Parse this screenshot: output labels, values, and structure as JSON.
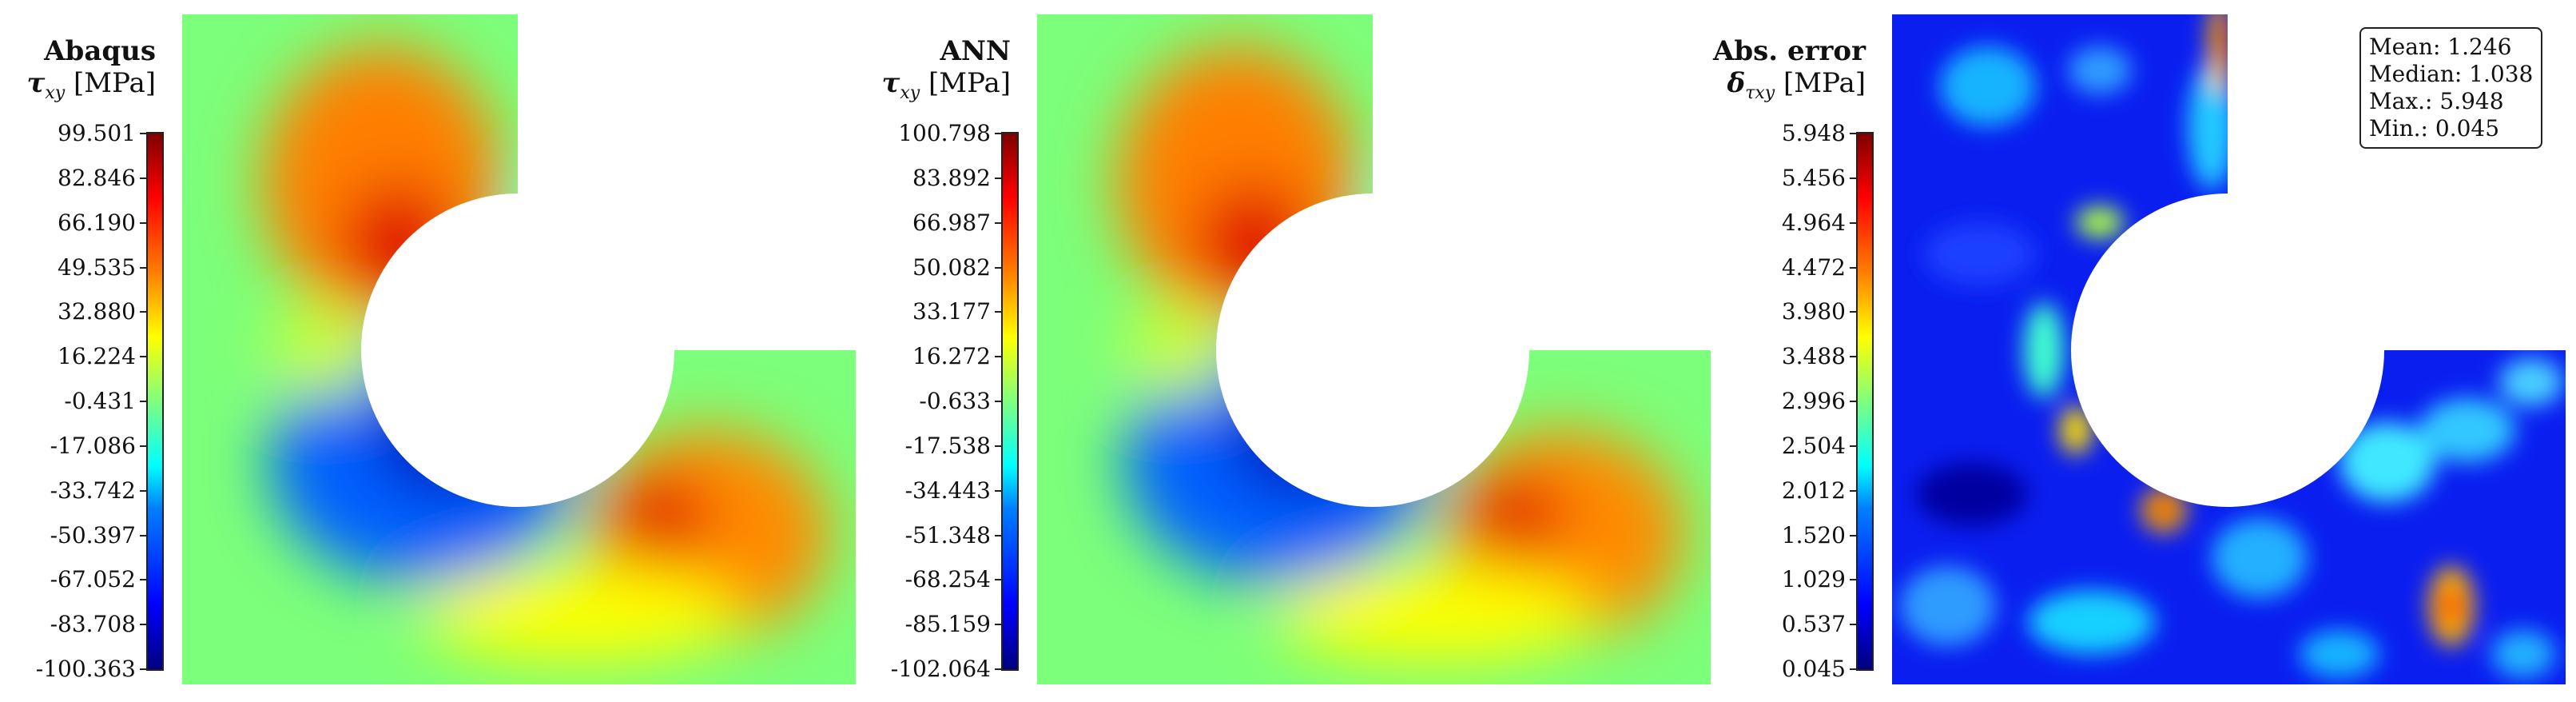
{
  "panels": [
    {
      "title": "Abaqus",
      "symbol": "τ",
      "subscript": "xy",
      "unit": "[MPa]",
      "ticks": [
        "99.501",
        "82.846",
        "66.190",
        "49.535",
        "32.880",
        "16.224",
        "-0.431",
        "-17.086",
        "-33.742",
        "-50.397",
        "-67.052",
        "-83.708",
        "-100.363"
      ]
    },
    {
      "title": "ANN",
      "symbol": "τ",
      "subscript": "xy",
      "unit": "[MPa]",
      "ticks": [
        "100.798",
        "83.892",
        "66.987",
        "50.082",
        "33.177",
        "16.272",
        "-0.633",
        "-17.538",
        "-34.443",
        "-51.348",
        "-68.254",
        "-85.159",
        "-102.064"
      ]
    },
    {
      "title": "Abs. error",
      "symbol": "δ",
      "subscript": "τxy",
      "unit": "[MPa]",
      "ticks": [
        "5.948",
        "5.456",
        "4.964",
        "4.472",
        "3.980",
        "3.488",
        "2.996",
        "2.504",
        "2.012",
        "1.520",
        "1.029",
        "0.537",
        "0.045"
      ]
    }
  ],
  "stats": {
    "mean": "Mean: 1.246",
    "median": "Median: 1.038",
    "max": "Max.: 5.948",
    "min": "Min.: 0.045"
  },
  "colormap": "jet"
}
